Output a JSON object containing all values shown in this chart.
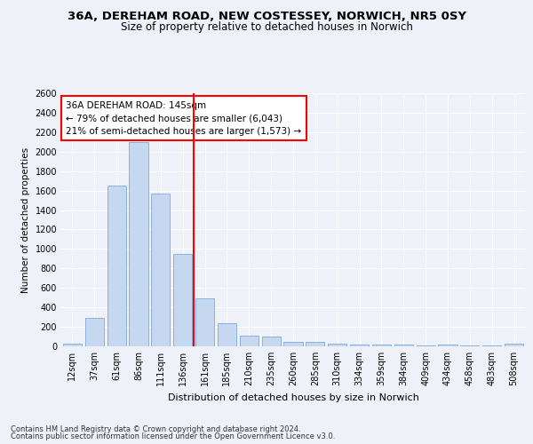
{
  "title1": "36A, DEREHAM ROAD, NEW COSTESSEY, NORWICH, NR5 0SY",
  "title2": "Size of property relative to detached houses in Norwich",
  "xlabel": "Distribution of detached houses by size in Norwich",
  "ylabel": "Number of detached properties",
  "categories": [
    "12sqm",
    "37sqm",
    "61sqm",
    "86sqm",
    "111sqm",
    "136sqm",
    "161sqm",
    "185sqm",
    "210sqm",
    "235sqm",
    "260sqm",
    "285sqm",
    "310sqm",
    "334sqm",
    "359sqm",
    "384sqm",
    "409sqm",
    "434sqm",
    "458sqm",
    "483sqm",
    "508sqm"
  ],
  "values": [
    25,
    290,
    1650,
    2100,
    1570,
    950,
    490,
    235,
    110,
    100,
    50,
    50,
    30,
    20,
    20,
    20,
    5,
    20,
    5,
    5,
    25
  ],
  "bar_color": "#c5d8f0",
  "bar_edge_color": "#6a9fd8",
  "vline_x": 6,
  "vline_color": "red",
  "annotation_text": "36A DEREHAM ROAD: 145sqm\n← 79% of detached houses are smaller (6,043)\n21% of semi-detached houses are larger (1,573) →",
  "annotation_box_color": "white",
  "annotation_box_edge": "red",
  "ylim": [
    0,
    2600
  ],
  "yticks": [
    0,
    200,
    400,
    600,
    800,
    1000,
    1200,
    1400,
    1600,
    1800,
    2000,
    2200,
    2400,
    2600
  ],
  "footer1": "Contains HM Land Registry data © Crown copyright and database right 2024.",
  "footer2": "Contains public sector information licensed under the Open Government Licence v3.0.",
  "bg_color": "#eef2f8",
  "plot_bg_color": "#eef2f8",
  "title1_fontsize": 9.5,
  "title2_fontsize": 8.5,
  "xlabel_fontsize": 8,
  "ylabel_fontsize": 7.5,
  "tick_fontsize": 7,
  "annotation_fontsize": 7.5,
  "footer_fontsize": 6
}
